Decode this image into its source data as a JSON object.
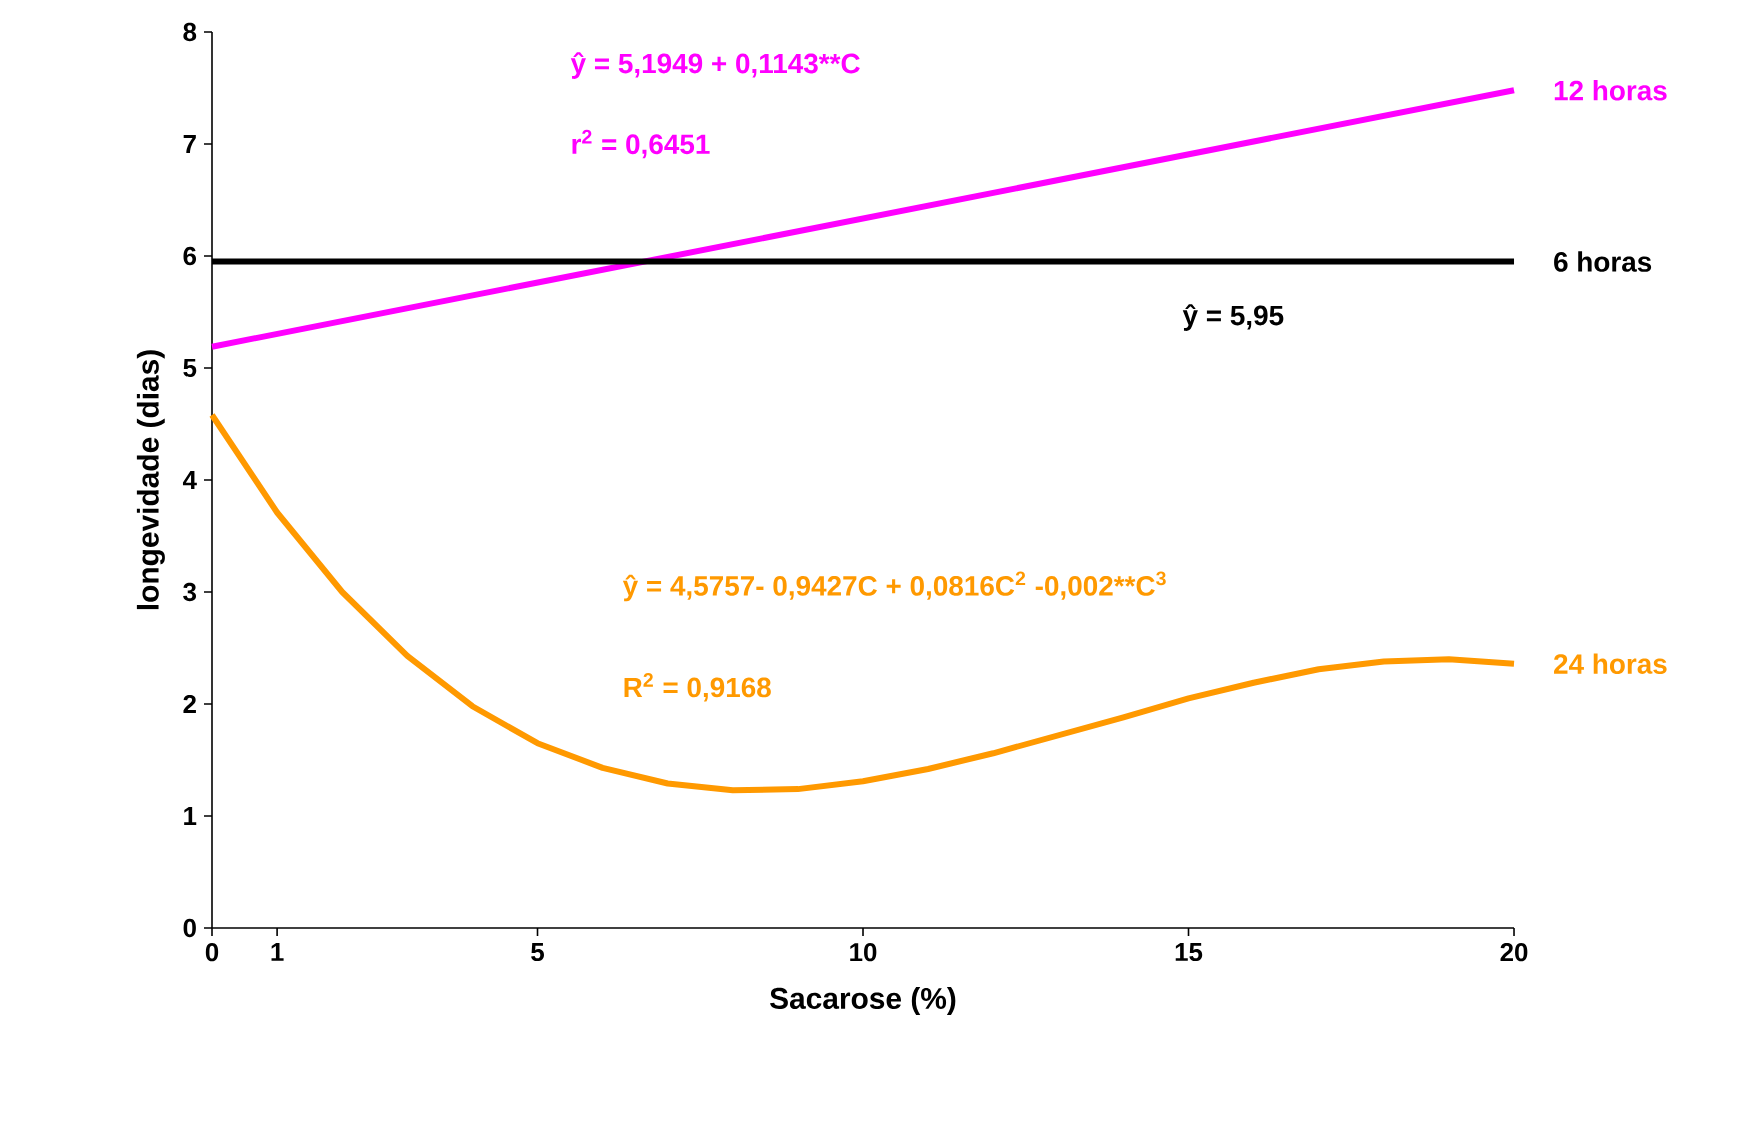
{
  "chart_data": {
    "type": "line",
    "xlabel": "Sacarose (%)",
    "ylabel": "longevidade (dias)",
    "xlim": [
      0,
      20
    ],
    "ylim": [
      0,
      8
    ],
    "xticks": [
      0,
      1,
      5,
      10,
      15,
      20
    ],
    "yticks": [
      0,
      1,
      2,
      3,
      4,
      5,
      6,
      7,
      8
    ],
    "grid": false,
    "marker": "none",
    "line_style": "solid",
    "series": [
      {
        "name": "12 horas",
        "color": "#ff00ff",
        "x": [
          0,
          20
        ],
        "values": [
          5.19,
          7.48
        ]
      },
      {
        "name": "6 horas",
        "color": "#000000",
        "x": [
          0,
          20
        ],
        "values": [
          5.95,
          5.95
        ]
      },
      {
        "name": "24 horas",
        "color": "#ff9900",
        "x": [
          0,
          1,
          2,
          3,
          4,
          5,
          6,
          7,
          8,
          9,
          10,
          11,
          12,
          13,
          14,
          15,
          16,
          17,
          18,
          19,
          20
        ],
        "values": [
          4.58,
          3.71,
          3.0,
          2.43,
          1.98,
          1.65,
          1.43,
          1.29,
          1.23,
          1.24,
          1.31,
          1.42,
          1.56,
          1.72,
          1.88,
          2.05,
          2.19,
          2.31,
          2.38,
          2.4,
          2.36
        ]
      }
    ],
    "annotations": [
      "ŷ = 5,1949 + 0,1143**C",
      "r$^{2}$ = 0,6451",
      "ŷ =  5,95",
      "ŷ = 4,5757- 0,9427C + 0,0816C$^{2}$ -0,002**C$^{3}$",
      "R$^{2}$ = 0,9168"
    ]
  }
}
